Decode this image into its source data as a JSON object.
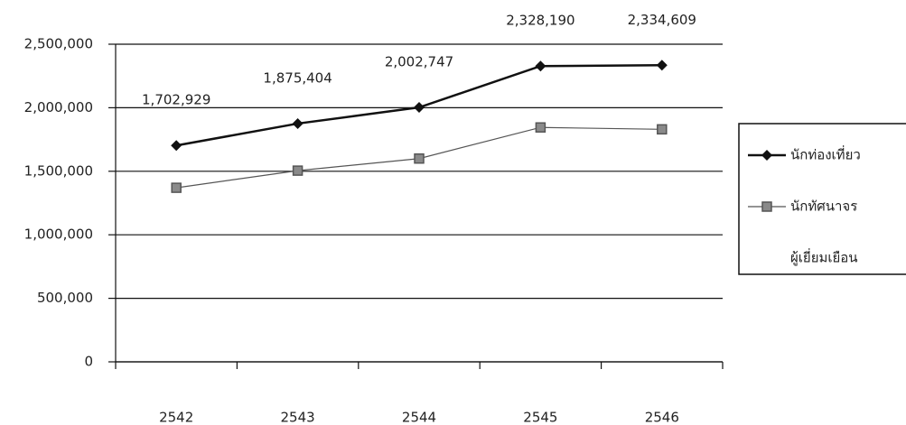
{
  "chart_data": {
    "type": "line",
    "categories": [
      "2542",
      "2543",
      "2544",
      "2545",
      "2546"
    ],
    "series": [
      {
        "name": "นักท่องเที่ยว",
        "color": "#111111",
        "marker": "diamond",
        "values": [
          1702929,
          1875404,
          2002747,
          2328190,
          2334609
        ],
        "value_labels": [
          "1,702,929",
          "1,875,404",
          "2,002,747",
          "2,328,190",
          "2,334,609"
        ]
      },
      {
        "name": "นักทัศนาจร",
        "color": "#555555",
        "marker": "square",
        "values": [
          1370000,
          1505000,
          1600000,
          1845000,
          1830000
        ]
      },
      {
        "name": "ผู้เยี่ยมเยือน",
        "color": "#ffffff",
        "marker": "none",
        "values": [
          null,
          null,
          null,
          null,
          null
        ]
      }
    ],
    "ylim": [
      0,
      2500000
    ],
    "yticks": [
      0,
      {
        "value": 500000,
        "label": "500,000"
      },
      {
        "value": 1000000,
        "label": "1,000,000"
      },
      {
        "value": 1500000,
        "label": "1,500,000"
      },
      {
        "value": 2000000,
        "label": "2,000,000"
      },
      {
        "value": 2500000,
        "label": "2,500,000"
      }
    ],
    "grid": true,
    "legend": "right"
  }
}
